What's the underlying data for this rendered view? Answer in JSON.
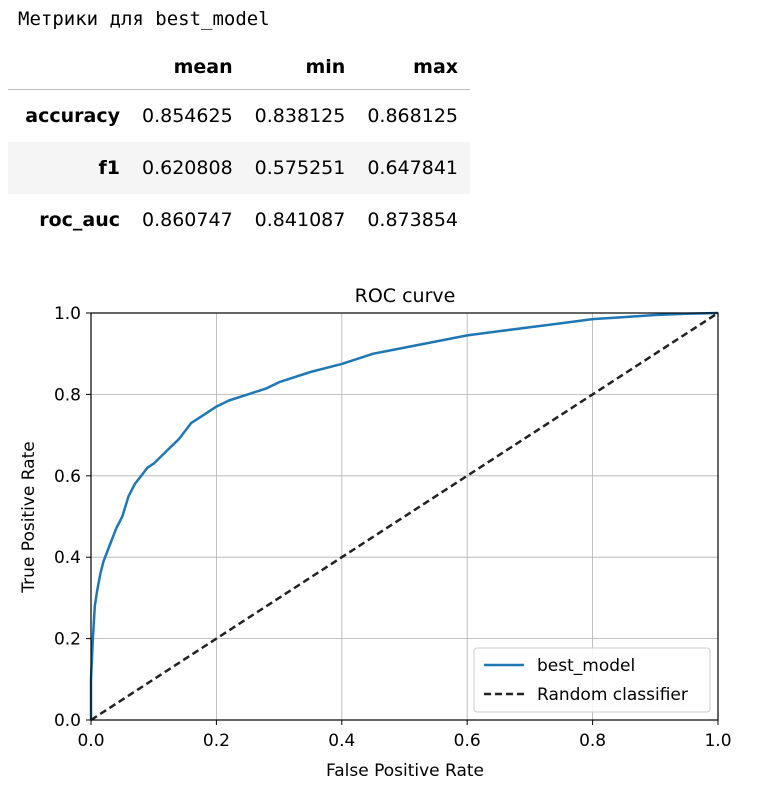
{
  "output_title": "Метрики для best_model",
  "table": {
    "columns": [
      "",
      "mean",
      "min",
      "max"
    ],
    "rows": [
      {
        "index": "accuracy",
        "values": [
          "0.854625",
          "0.838125",
          "0.868125"
        ]
      },
      {
        "index": "f1",
        "values": [
          "0.620808",
          "0.575251",
          "0.647841"
        ]
      },
      {
        "index": "roc_auc",
        "values": [
          "0.860747",
          "0.841087",
          "0.873854"
        ]
      }
    ]
  },
  "chart_data": {
    "type": "line",
    "title": "ROC curve",
    "xlabel": "False Positive Rate",
    "ylabel": "True Positive Rate",
    "xlim": [
      0,
      1
    ],
    "ylim": [
      0,
      1
    ],
    "xticks": [
      "0.0",
      "0.2",
      "0.4",
      "0.6",
      "0.8",
      "1.0"
    ],
    "yticks": [
      "0.0",
      "0.2",
      "0.4",
      "0.6",
      "0.8",
      "1.0"
    ],
    "grid": true,
    "legend_position": "lower-right",
    "series": [
      {
        "name": "best_model",
        "color": "#1f77b4",
        "style": "solid",
        "x": [
          0.0,
          0.0,
          0.003,
          0.006,
          0.01,
          0.015,
          0.02,
          0.03,
          0.04,
          0.05,
          0.06,
          0.07,
          0.08,
          0.09,
          0.1,
          0.12,
          0.14,
          0.16,
          0.18,
          0.2,
          0.22,
          0.25,
          0.28,
          0.3,
          0.35,
          0.4,
          0.45,
          0.5,
          0.55,
          0.6,
          0.65,
          0.7,
          0.75,
          0.8,
          0.85,
          0.9,
          0.95,
          1.0
        ],
        "y": [
          0.0,
          0.1,
          0.2,
          0.28,
          0.32,
          0.36,
          0.39,
          0.43,
          0.47,
          0.5,
          0.55,
          0.58,
          0.6,
          0.62,
          0.63,
          0.66,
          0.69,
          0.73,
          0.75,
          0.77,
          0.785,
          0.8,
          0.815,
          0.83,
          0.855,
          0.875,
          0.9,
          0.915,
          0.93,
          0.945,
          0.955,
          0.965,
          0.975,
          0.985,
          0.99,
          0.995,
          0.998,
          1.0
        ]
      },
      {
        "name": "Random classifier",
        "color": "#222222",
        "style": "dashed",
        "x": [
          0,
          1
        ],
        "y": [
          0,
          1
        ]
      }
    ]
  }
}
